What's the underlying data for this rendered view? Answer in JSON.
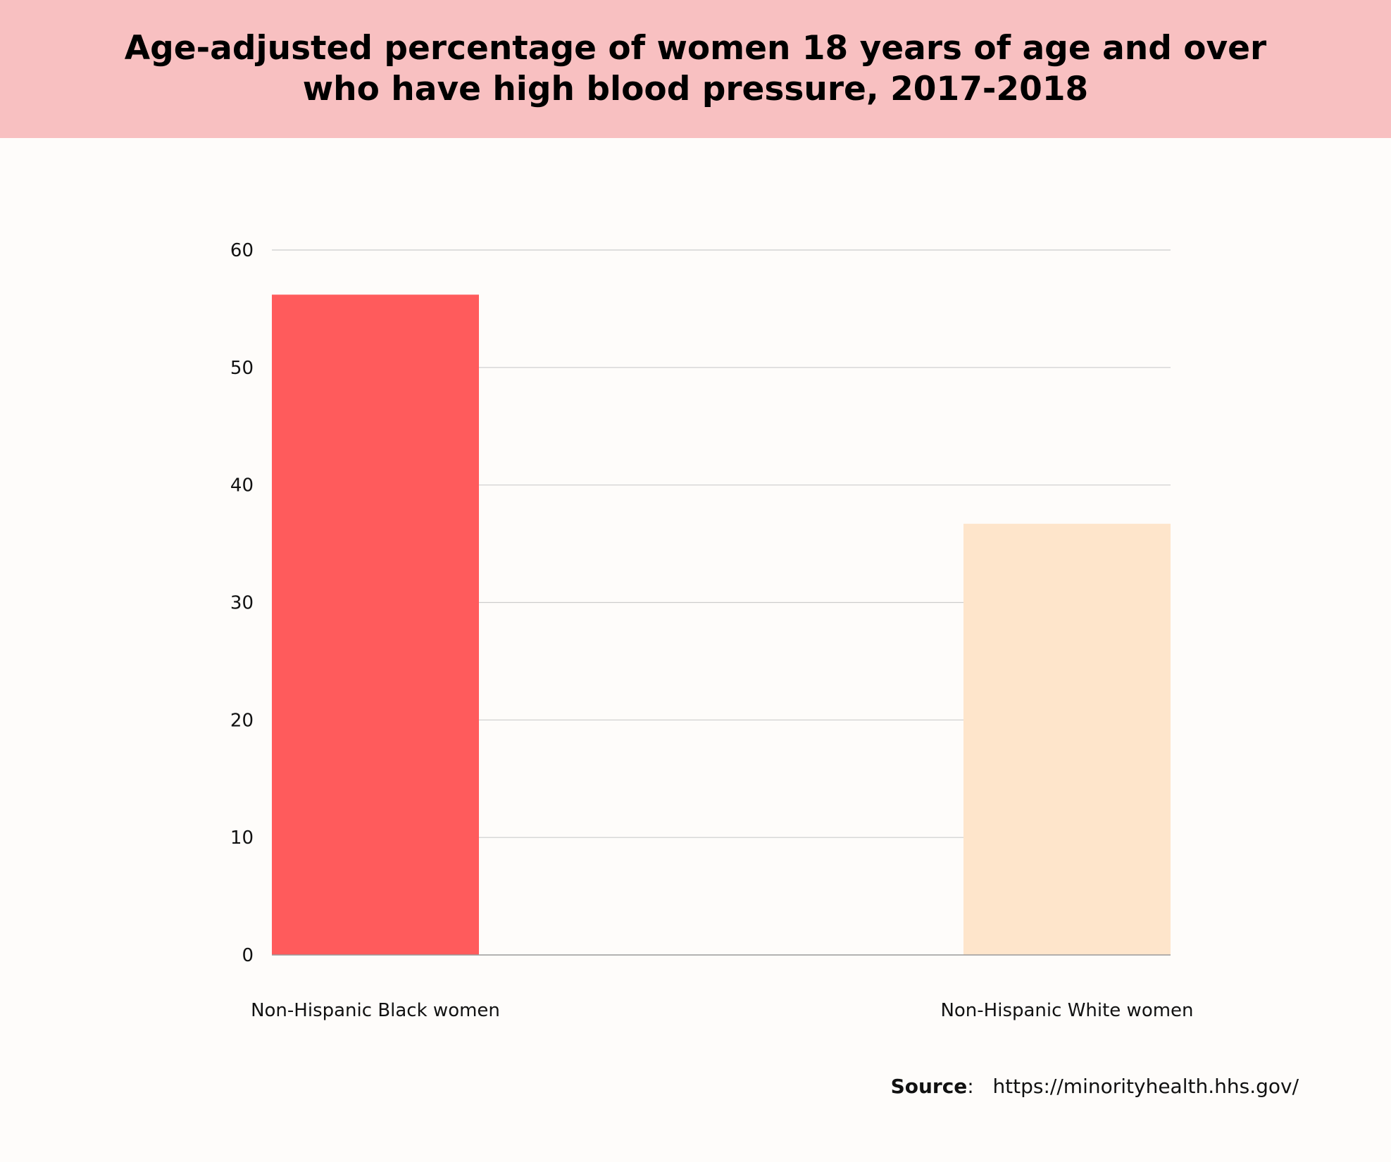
{
  "chart_data": {
    "type": "bar",
    "title": "Age-adjusted percentage of women 18 years of age and over who have high blood pressure, 2017-2018",
    "categories": [
      "Non-Hispanic Black women",
      "Non-Hispanic White women"
    ],
    "values": [
      56.2,
      36.7
    ],
    "colors": [
      "#ff5b5c",
      "#fee5cb"
    ],
    "ylim": [
      0,
      60
    ],
    "yticks": [
      0,
      10,
      20,
      30,
      40,
      50,
      60
    ],
    "xlabel": "",
    "ylabel": "",
    "grid": true,
    "gridline_color": "#cccccc",
    "header_color": "#f8c0c1",
    "background_color": "#fefcfa"
  },
  "source": {
    "label": "Source",
    "separator": ":",
    "url": "https://minorityhealth.hhs.gov/"
  }
}
